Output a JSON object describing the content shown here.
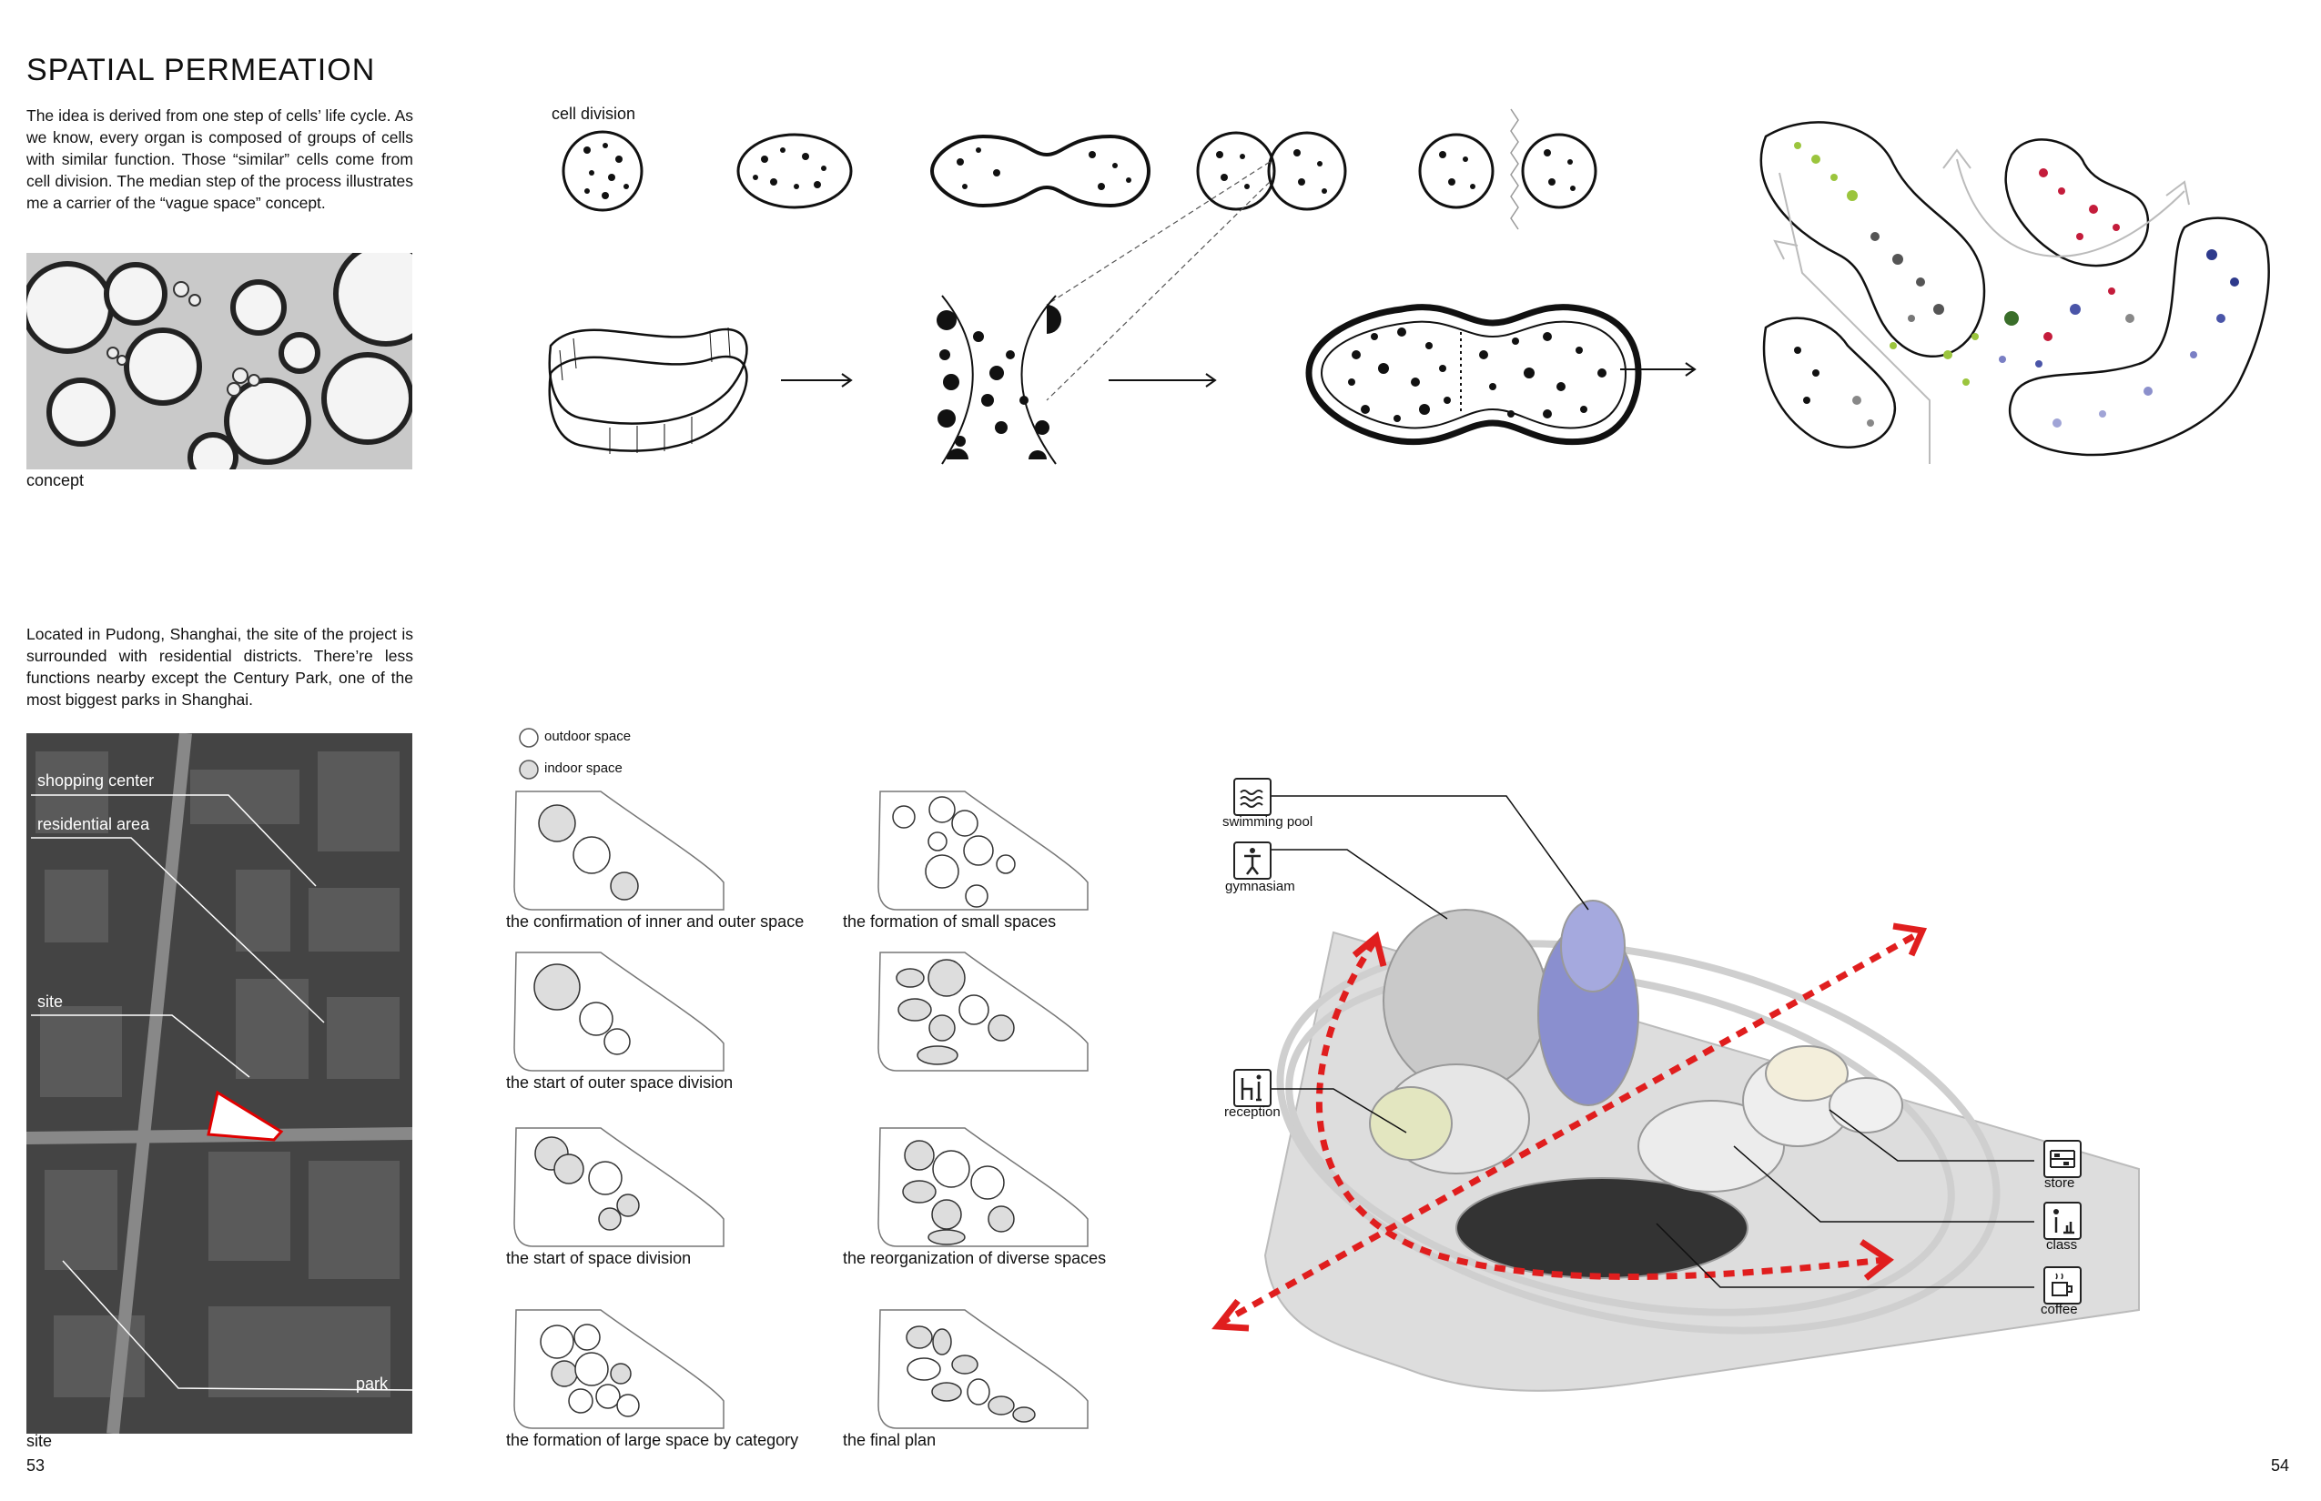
{
  "header": {
    "title": "SPATIAL PERMEATION"
  },
  "intro": {
    "text": "The idea is derived from one step of cells’ life cycle. As we know, every organ is composed of groups of cells with similar function. Those “similar” cells come from cell division. The median step of the process illustrates me a carrier of the “vague space” concept."
  },
  "concept": {
    "caption": "concept"
  },
  "cell_division": {
    "label": "cell division"
  },
  "site_text": {
    "text": "Located in Pudong, Shanghai, the site of the project is surrounded with residential districts. There’re less functions nearby except the Century Park, one of the most biggest parks in Shanghai."
  },
  "site_map": {
    "caption": "site",
    "labels": {
      "shopping": "shopping center",
      "residential": "residential area",
      "site": "site",
      "park": "park"
    }
  },
  "legend": {
    "outdoor": "outdoor space",
    "indoor": "indoor space"
  },
  "steps": [
    "the confirmation of inner and outer space",
    "the formation of small spaces",
    "the start of outer space division",
    "the start of space division",
    "the reorganization of diverse spaces",
    "the formation of large space by category",
    "the final plan"
  ],
  "functions": {
    "pool": "swimming pool",
    "gym": "gymnasiam",
    "reception": "reception",
    "store": "store",
    "class": "class",
    "coffee": "coffee"
  },
  "pages": {
    "left": "53",
    "right": "54"
  },
  "colors": {
    "arrow": "#e01e1e",
    "site_outline": "#e00000"
  }
}
